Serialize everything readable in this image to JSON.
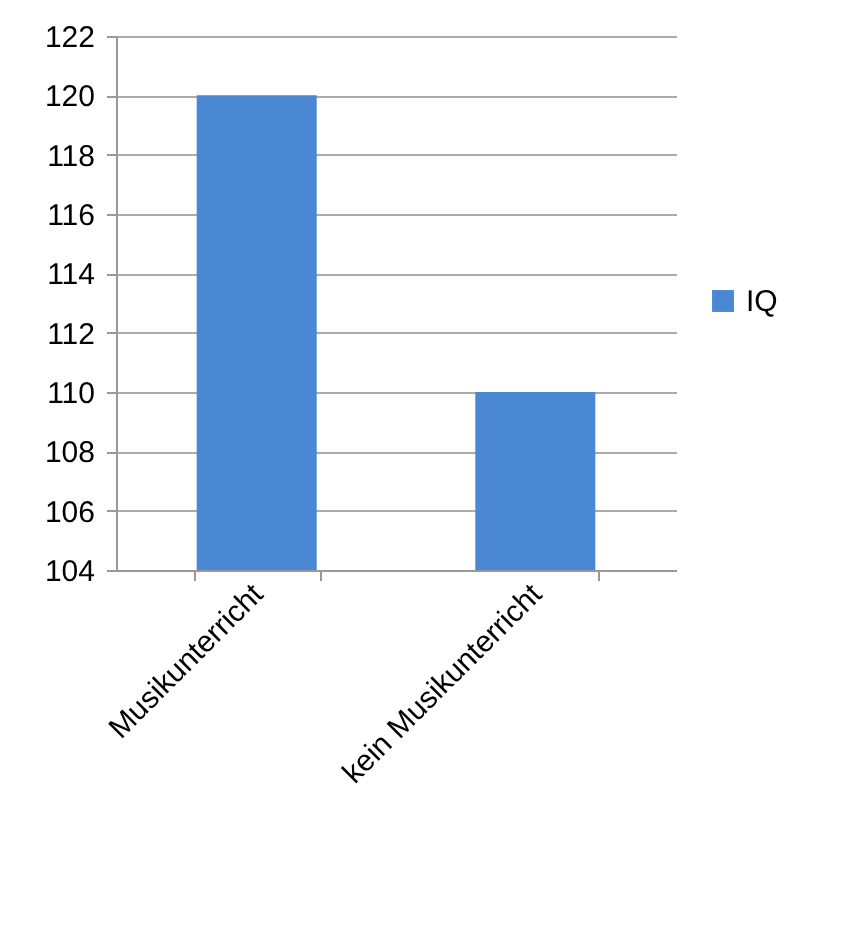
{
  "chart_data": {
    "type": "bar",
    "categories": [
      "Musikunterricht",
      "kein Musikunterricht"
    ],
    "series": [
      {
        "name": "IQ",
        "color": "#4a88d4",
        "values": [
          120,
          110
        ]
      }
    ],
    "ylim": [
      104,
      122
    ],
    "yticks": [
      104,
      106,
      108,
      110,
      112,
      114,
      116,
      118,
      120,
      122
    ],
    "grid": "y",
    "legend": "right"
  }
}
